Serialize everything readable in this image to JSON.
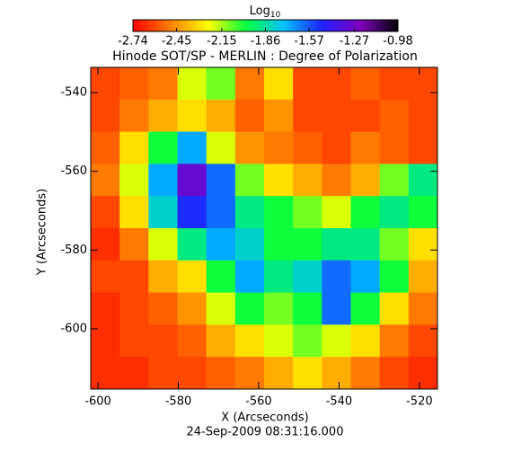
{
  "chart_data": {
    "type": "heatmap",
    "title": "Hinode SOT/SP - MERLIN : Degree of Polarization",
    "colorbar": {
      "label": "Log",
      "label_subscript": "10",
      "clim": [
        -2.74,
        -0.98
      ],
      "ticks": [
        {
          "value": -2.74,
          "label": "-2.74"
        },
        {
          "value": -2.45,
          "label": "-2.45"
        },
        {
          "value": -2.15,
          "label": "-2.15"
        },
        {
          "value": -1.86,
          "label": "-1.86"
        },
        {
          "value": -1.57,
          "label": "-1.57"
        },
        {
          "value": -1.27,
          "label": "-1.27"
        },
        {
          "value": -0.98,
          "label": "-0.98"
        }
      ],
      "colors": [
        "#ff0000",
        "#ff8000",
        "#ffff00",
        "#00ff40",
        "#00c0ff",
        "#2020ff",
        "#8000c0",
        "#000000"
      ]
    },
    "x_label": "X (Arcseconds)",
    "y_label": "Y (Arcseconds)",
    "footer": "24-Sep-2009 08:31:16.000",
    "xlim": [
      -601.8,
      -515.5
    ],
    "ylim": [
      -615.3,
      -533.6
    ],
    "xticks": [
      -600,
      -580,
      -560,
      -540,
      -520
    ],
    "yticks": [
      -540,
      -560,
      -580,
      -600
    ],
    "z": [
      [
        -2.6,
        -2.55,
        -2.5,
        -2.2,
        -2.1,
        -2.5,
        -2.3,
        -2.6,
        -2.6,
        -2.55,
        -2.6,
        -2.6
      ],
      [
        -2.6,
        -2.5,
        -2.4,
        -2.3,
        -2.4,
        -2.55,
        -2.45,
        -2.6,
        -2.6,
        -2.6,
        -2.55,
        -2.6
      ],
      [
        -2.55,
        -2.3,
        -2.0,
        -1.7,
        -2.2,
        -2.45,
        -2.5,
        -2.55,
        -2.6,
        -2.5,
        -2.55,
        -2.6
      ],
      [
        -2.5,
        -2.2,
        -1.7,
        -1.3,
        -1.6,
        -2.1,
        -2.3,
        -2.4,
        -2.5,
        -2.4,
        -2.1,
        -1.9
      ],
      [
        -2.6,
        -2.3,
        -1.8,
        -1.5,
        -1.6,
        -1.9,
        -2.0,
        -2.1,
        -2.2,
        -2.0,
        -1.9,
        -2.0
      ],
      [
        -2.65,
        -2.5,
        -2.2,
        -1.9,
        -1.7,
        -1.8,
        -2.0,
        -2.0,
        -1.9,
        -1.9,
        -2.1,
        -2.3
      ],
      [
        -2.6,
        -2.6,
        -2.4,
        -2.3,
        -2.0,
        -1.7,
        -1.9,
        -1.8,
        -1.6,
        -1.7,
        -2.0,
        -2.4
      ],
      [
        -2.65,
        -2.6,
        -2.55,
        -2.45,
        -2.2,
        -2.0,
        -2.1,
        -2.0,
        -1.6,
        -2.0,
        -2.3,
        -2.5
      ],
      [
        -2.65,
        -2.6,
        -2.6,
        -2.55,
        -2.4,
        -2.3,
        -2.2,
        -2.1,
        -2.2,
        -2.3,
        -2.5,
        -2.6
      ],
      [
        -2.65,
        -2.65,
        -2.6,
        -2.6,
        -2.55,
        -2.5,
        -2.4,
        -2.3,
        -2.4,
        -2.5,
        -2.6,
        -2.65
      ]
    ]
  }
}
